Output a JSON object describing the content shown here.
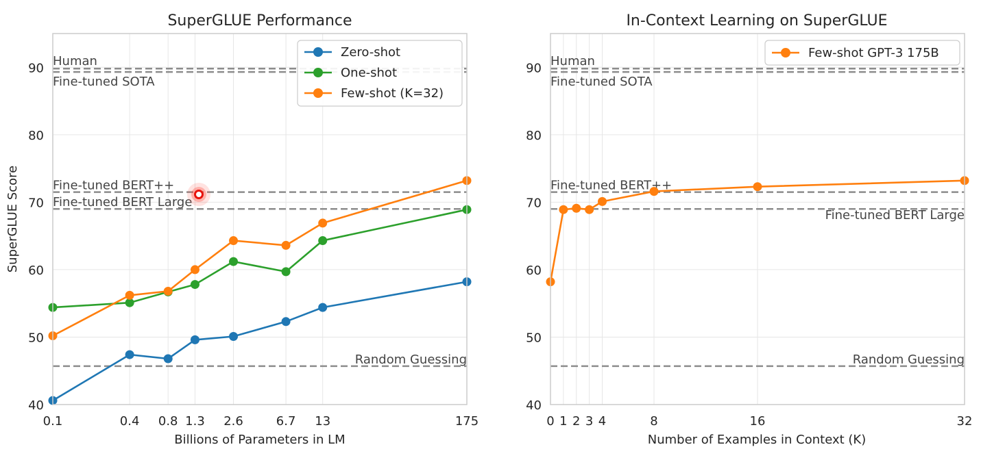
{
  "chart_data": [
    {
      "type": "line",
      "title": "SuperGLUE Performance",
      "xlabel": "Billions of Parameters in LM",
      "ylabel": "SuperGLUE Score",
      "ylim": [
        40,
        95
      ],
      "yticks": [
        "40",
        "50",
        "60",
        "70",
        "80",
        "90"
      ],
      "categories": [
        "0.1",
        "0.4",
        "0.8",
        "1.3",
        "2.6",
        "6.7",
        "13",
        "175"
      ],
      "series": [
        {
          "name": "Zero-shot",
          "color": "#1f77b4",
          "values": [
            40.6,
            47.4,
            46.8,
            49.6,
            50.1,
            52.3,
            54.4,
            58.2
          ]
        },
        {
          "name": "One-shot",
          "color": "#2ca02c",
          "values": [
            54.4,
            55.1,
            56.7,
            57.8,
            61.2,
            59.7,
            64.3,
            68.9
          ]
        },
        {
          "name": "Few-shot (K=32)",
          "color": "#ff7f0e",
          "values": [
            50.2,
            56.2,
            56.8,
            60.0,
            64.3,
            63.6,
            66.9,
            73.2
          ]
        }
      ],
      "reference_lines": [
        {
          "label": "Human",
          "value": 89.8
        },
        {
          "label": "Fine-tuned SOTA",
          "value": 89.3
        },
        {
          "label": "Fine-tuned BERT++",
          "value": 71.5
        },
        {
          "label": "Fine-tuned BERT Large",
          "value": 69.0
        },
        {
          "label": "Random Guessing",
          "value": 45.7
        }
      ],
      "grid": true,
      "legend": "top-right"
    },
    {
      "type": "line",
      "title": "In-Context Learning on SuperGLUE",
      "xlabel": "Number of Examples in Context (K)",
      "ylabel": "",
      "ylim": [
        40,
        95
      ],
      "xlim": [
        0,
        32
      ],
      "yticks": [
        "40",
        "50",
        "60",
        "70",
        "80",
        "90"
      ],
      "xticks": [
        "0",
        "1",
        "2",
        "3",
        "4",
        "8",
        "16",
        "32"
      ],
      "series": [
        {
          "name": "Few-shot GPT-3 175B",
          "color": "#ff7f0e",
          "x": [
            0,
            1,
            2,
            3,
            4,
            8,
            16,
            32
          ],
          "values": [
            58.2,
            68.9,
            69.1,
            68.9,
            70.1,
            71.6,
            72.3,
            73.2
          ]
        }
      ],
      "reference_lines": [
        {
          "label": "Human",
          "value": 89.8
        },
        {
          "label": "Fine-tuned SOTA",
          "value": 89.3
        },
        {
          "label": "Fine-tuned BERT++",
          "value": 71.5
        },
        {
          "label": "Fine-tuned BERT Large",
          "value": 69.0
        },
        {
          "label": "Random Guessing",
          "value": 45.7
        }
      ],
      "grid": true,
      "legend": "top-right"
    }
  ]
}
